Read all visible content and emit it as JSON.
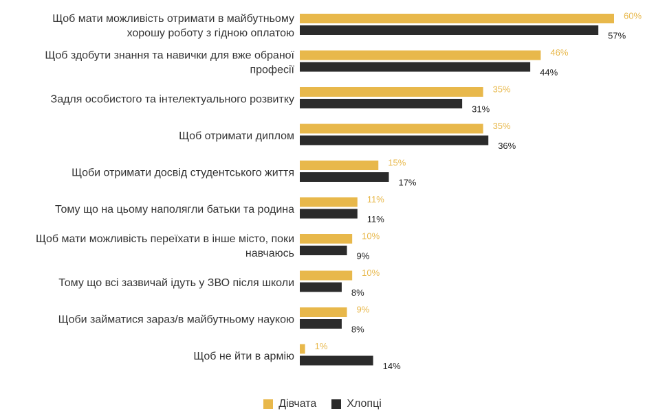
{
  "chart_data": {
    "type": "bar",
    "orientation": "horizontal",
    "categories": [
      [
        "Щоб мати можливість отримати в майбутньому",
        "хорошу роботу з гідною оплатою"
      ],
      [
        "Щоб здобути знання та навички для вже обраної",
        "професії"
      ],
      [
        "Задля особистого та інтелектуального розвитку"
      ],
      [
        "Щоб отримати диплом"
      ],
      [
        "Щоби отримати досвід студентського життя"
      ],
      [
        "Тому що на цьому наполягли батьки та родина"
      ],
      [
        "Щоб мати можливість переїхати в інше місто, поки",
        "навчаюсь"
      ],
      [
        "Тому що всі зазвичай ідуть у ЗВО після школи"
      ],
      [
        "Щоби займатися зараз/в майбутньому наукою"
      ],
      [
        "Щоб не йти в армію"
      ]
    ],
    "series": [
      {
        "name": "Дівчата",
        "color": "#e8b84b",
        "values": [
          60,
          46,
          35,
          35,
          15,
          11,
          10,
          10,
          9,
          1
        ]
      },
      {
        "name": "Хлопці",
        "color": "#2b2b2b",
        "values": [
          57,
          44,
          31,
          36,
          17,
          11,
          9,
          8,
          8,
          14
        ]
      }
    ],
    "value_suffix": "%",
    "xlim": [
      0,
      60
    ],
    "grid": false,
    "legend_position": "bottom-center"
  }
}
